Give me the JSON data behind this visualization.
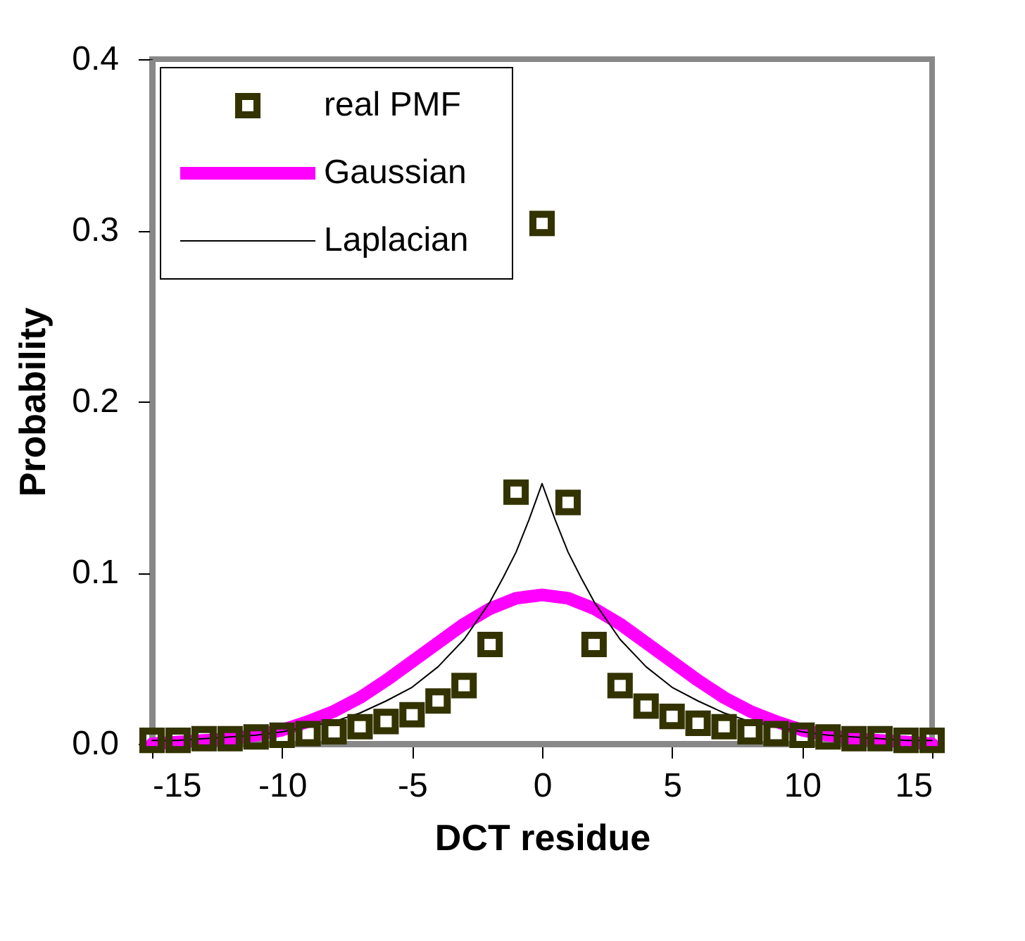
{
  "chart_data": {
    "type": "scatter",
    "xlabel": "DCT residue",
    "ylabel": "Probability",
    "xlim": [
      -15,
      15
    ],
    "xticks": [
      -15,
      -10,
      -5,
      0,
      5,
      10,
      15
    ],
    "ylim": [
      0,
      0.4
    ],
    "yticks": [
      {
        "value": 0,
        "label": "0.0"
      },
      0.1,
      0.2,
      0.3,
      0.4
    ],
    "legend": "top left",
    "grid": false,
    "series": [
      {
        "name": "real PMF",
        "marker": "square",
        "color": "#333300",
        "x": [
          -15,
          -14,
          -13,
          -12,
          -11,
          -10,
          -9,
          -8,
          -7,
          -6,
          -5,
          -4,
          -3,
          -2,
          -1,
          0,
          1,
          2,
          3,
          4,
          5,
          6,
          7,
          8,
          9,
          10,
          11,
          12,
          13,
          14,
          15
        ],
        "values": [
          0.002,
          0.002,
          0.003,
          0.003,
          0.004,
          0.005,
          0.006,
          0.007,
          0.01,
          0.013,
          0.017,
          0.025,
          0.034,
          0.058,
          0.147,
          0.304,
          0.141,
          0.058,
          0.034,
          0.022,
          0.016,
          0.012,
          0.01,
          0.007,
          0.006,
          0.005,
          0.004,
          0.003,
          0.003,
          0.002,
          0.002
        ]
      },
      {
        "name": "Gaussian",
        "type": "line",
        "color": "#ff00ff",
        "x": [
          -15,
          -14,
          -13,
          -12,
          -11,
          -10,
          -9,
          -8,
          -7,
          -6,
          -5,
          -4,
          -3,
          -2,
          -1,
          0,
          1,
          2,
          3,
          4,
          5,
          6,
          7,
          8,
          9,
          10,
          11,
          12,
          13,
          14,
          15
        ],
        "values": [
          0.0,
          0.001,
          0.002,
          0.003,
          0.005,
          0.008,
          0.013,
          0.019,
          0.027,
          0.037,
          0.048,
          0.059,
          0.07,
          0.079,
          0.085,
          0.087,
          0.085,
          0.079,
          0.07,
          0.059,
          0.048,
          0.037,
          0.027,
          0.019,
          0.013,
          0.008,
          0.005,
          0.003,
          0.002,
          0.001,
          0.0
        ]
      },
      {
        "name": "Laplacian",
        "type": "line",
        "color": "#000000",
        "x": [
          -15,
          -14,
          -13,
          -12,
          -11,
          -10,
          -9,
          -8,
          -7,
          -6,
          -5,
          -4,
          -3,
          -2,
          -1.5,
          -1,
          -0.5,
          0,
          0.5,
          1,
          1.5,
          2,
          3,
          4,
          5,
          6,
          7,
          8,
          9,
          10,
          11,
          12,
          13,
          14,
          15
        ],
        "values": [
          0.002,
          0.002,
          0.003,
          0.004,
          0.005,
          0.007,
          0.01,
          0.013,
          0.018,
          0.025,
          0.033,
          0.045,
          0.061,
          0.083,
          0.097,
          0.112,
          0.131,
          0.152,
          0.131,
          0.112,
          0.097,
          0.083,
          0.061,
          0.045,
          0.033,
          0.025,
          0.018,
          0.013,
          0.01,
          0.007,
          0.005,
          0.004,
          0.003,
          0.002,
          0.002
        ]
      }
    ]
  }
}
